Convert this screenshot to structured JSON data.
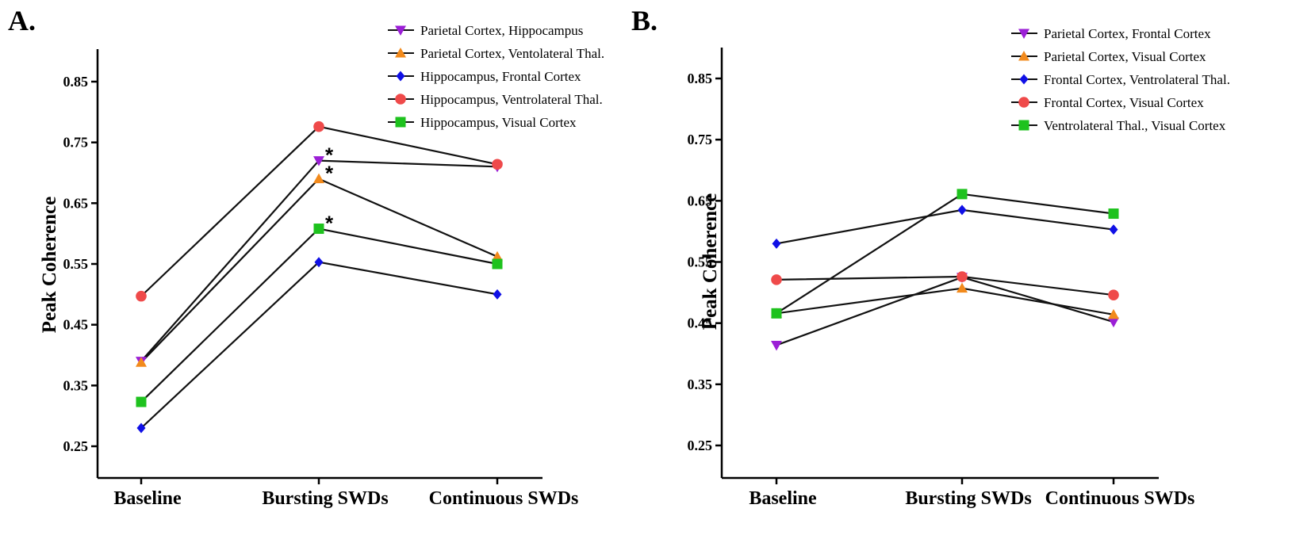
{
  "chart_data": [
    {
      "panel_label": "A.",
      "type": "line",
      "ylabel": "Peak Coherence",
      "xlabel": "",
      "categories": [
        "Baseline",
        "Bursting SWDs",
        "Continuous SWDs"
      ],
      "ylim": [
        0.2,
        0.9
      ],
      "yticks": [
        "0.25",
        "0.35",
        "0.45",
        "0.55",
        "0.65",
        "0.75",
        "0.85"
      ],
      "legend_position": "top-right",
      "series": [
        {
          "name": "Parietal Cortex, Hippocampus",
          "marker": "triangle-down",
          "color": "#9b1fd6",
          "values": [
            0.39,
            0.72,
            0.71
          ]
        },
        {
          "name": "Parietal Cortex, Ventolateral Thal.",
          "marker": "triangle-up",
          "color": "#f28a1c",
          "values": [
            0.388,
            0.69,
            0.562
          ]
        },
        {
          "name": "Hippocampus, Frontal Cortex",
          "marker": "diamond",
          "color": "#1010e6",
          "values": [
            0.28,
            0.553,
            0.5
          ]
        },
        {
          "name": "Hippocampus, Ventrolateral Thal.",
          "marker": "circle",
          "color": "#ef4a4a",
          "values": [
            0.497,
            0.776,
            0.714
          ]
        },
        {
          "name": "Hippocampus, Visual Cortex",
          "marker": "square",
          "color": "#1ec21e",
          "values": [
            0.323,
            0.608,
            0.55
          ]
        }
      ],
      "annotations": [
        {
          "text": "*",
          "category": "Bursting SWDs",
          "series": "Parietal Cortex, Hippocampus"
        },
        {
          "text": "*",
          "category": "Bursting SWDs",
          "series": "Parietal Cortex, Ventolateral Thal."
        },
        {
          "text": "*",
          "category": "Bursting SWDs",
          "series": "Hippocampus, Visual Cortex"
        }
      ]
    },
    {
      "panel_label": "B.",
      "type": "line",
      "ylabel": "Peak Coherence",
      "xlabel": "",
      "categories": [
        "Baseline",
        "Bursting SWDs",
        "Continuous SWDs"
      ],
      "ylim": [
        0.2,
        0.9
      ],
      "yticks": [
        "0.25",
        "0.35",
        "0.45",
        "0.55",
        "0.65",
        "0.75",
        "0.85"
      ],
      "legend_position": "top-right",
      "series": [
        {
          "name": "Parietal Cortex, Frontal Cortex",
          "marker": "triangle-down",
          "color": "#9b1fd6",
          "values": [
            0.414,
            0.525,
            0.452
          ]
        },
        {
          "name": "Parietal Cortex, Visual Cortex",
          "marker": "triangle-up",
          "color": "#f28a1c",
          "values": [
            0.466,
            0.507,
            0.464
          ]
        },
        {
          "name": "Frontal Cortex, Ventrolateral Thal.",
          "marker": "diamond",
          "color": "#1010e6",
          "values": [
            0.58,
            0.635,
            0.603
          ]
        },
        {
          "name": "Frontal Cortex, Visual Cortex",
          "marker": "circle",
          "color": "#ef4a4a",
          "values": [
            0.521,
            0.526,
            0.496
          ]
        },
        {
          "name": "Ventrolateral Thal., Visual Cortex",
          "marker": "square",
          "color": "#1ec21e",
          "values": [
            0.466,
            0.661,
            0.629
          ]
        }
      ],
      "annotations": []
    }
  ]
}
